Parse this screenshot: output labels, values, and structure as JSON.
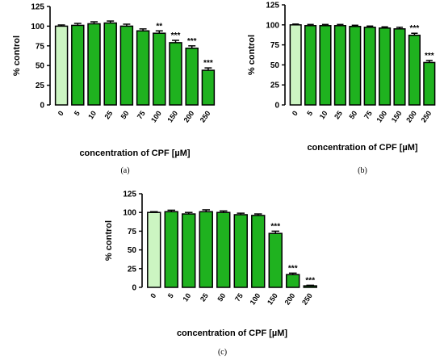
{
  "colors": {
    "control_fill": "#ccf5c2",
    "bar_fill": "#1fb21f",
    "bar_stroke": "#000000",
    "axis": "#000000"
  },
  "chart_data": [
    {
      "type": "bar",
      "panel": "(a)",
      "categories": [
        "0",
        "5",
        "10",
        "25",
        "50",
        "75",
        "100",
        "150",
        "200",
        "250"
      ],
      "values": [
        100,
        101,
        103,
        104,
        100,
        94,
        91,
        79,
        72,
        44
      ],
      "errors": [
        1.5,
        2.5,
        2.5,
        2.5,
        2.5,
        2.5,
        3,
        3,
        3,
        3
      ],
      "significance": [
        "",
        "",
        "",
        "",
        "",
        "",
        "**",
        "***",
        "***",
        "***"
      ],
      "ylabel": "% control",
      "xlabel": "concentration of CPF [µM]",
      "ylim": [
        0,
        125
      ],
      "yticks": [
        "0",
        "25",
        "50",
        "75",
        "100",
        "125"
      ]
    },
    {
      "type": "bar",
      "panel": "(b)",
      "categories": [
        "0",
        "5",
        "10",
        "25",
        "50",
        "75",
        "100",
        "150",
        "200",
        "250"
      ],
      "values": [
        100,
        99,
        99,
        99,
        98,
        97,
        96,
        95,
        87,
        53
      ],
      "errors": [
        1,
        1.5,
        1.5,
        1.5,
        1.5,
        1.5,
        1.5,
        2,
        2.5,
        2.5
      ],
      "significance": [
        "",
        "",
        "",
        "",
        "",
        "",
        "",
        "",
        "***",
        "***"
      ],
      "ylabel": "% control",
      "xlabel": "concentration of CPF [µM]",
      "ylim": [
        0,
        125
      ],
      "yticks": [
        "0",
        "25",
        "50",
        "75",
        "100",
        "125"
      ]
    },
    {
      "type": "bar",
      "panel": "(c)",
      "categories": [
        "0",
        "5",
        "10",
        "25",
        "50",
        "75",
        "100",
        "150",
        "200",
        "250"
      ],
      "values": [
        100,
        101,
        98,
        101,
        100,
        97,
        96,
        72,
        17,
        2
      ],
      "errors": [
        1,
        2,
        2,
        2.5,
        2,
        2,
        2,
        3,
        2,
        0.8
      ],
      "significance": [
        "",
        "",
        "",
        "",
        "",
        "",
        "",
        "***",
        "***",
        "***"
      ],
      "ylabel": "% control",
      "xlabel": "concentration of CPF [µM]",
      "ylim": [
        0,
        125
      ],
      "yticks": [
        "0",
        "25",
        "50",
        "75",
        "100",
        "125"
      ]
    }
  ]
}
